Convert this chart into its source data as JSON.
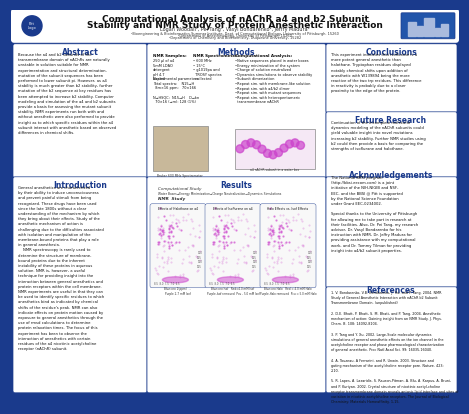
{
  "title_line1": "Computational Analysis of nAChR a4 and b2 Subunit",
  "title_line2": "Stability and NMR Study of Protein Anesthetic Interaction",
  "authors": "Logan Woodall¹, Pei Tang¹, Vasyl Bondarenko², Jeffry Madura³",
  "affil1": "¹Bioengineering & Bioinformatics Summer Institute, Dept. of Computational Biology, University of Pittsburgh, 15260",
  "affil2": "²Department of Anesthesiology, University of Pittsburgh, 15260",
  "affil3": "³Department of Chemistry and Biochemistry, Duquesne University, 15282",
  "bg_color": "#1a3a8c",
  "header_bg": "#1a3a8c",
  "panel_bg": "#ffffff",
  "panel_bg2": "#e8f0f8",
  "section_title_color": "#1a3a8c",
  "abstract_title": "Abstract",
  "abstract_text": "Because the a4 and b2 subunits of the\ntransmembrane domain of nAChRs are naturally\nunstable in solution suitable for NMR\nexperimentation and structural determination,\nmutation of the subunit sequences has been\nperformed to lower subunit pi. However, as a4\nstability is much greater than b2 stability, further\nmutation of the b2 sequence at key residues has\nbeen attempted to increase b2 stability. Computer\nmodeling and simulation of the a4 and b2 subunits\nprovide a basis for assessing the mutant subunit\nstability. NMR experiments run both with and\nwithout anesthetic were also performed to provide\ninsight as to which specific residues within the a4\nsubunit interact with anesthetic based on observed\ndifferences in chemical shifts.",
  "intro_title": "Introduction",
  "intro_text": "General anesthetics are characterized\nby their ability to induce unconsciousness\nand prevent painful stimuli from being\nrecognized. These drugs have been used\nsince the late 1800s without a clear\nunderstanding of the mechanism by which\nthey bring about their effects. Study of the\nanesthetic mechanism of action is\nchallenging due to the difficulties associated\nwith isolation and manipulation of the\nmembrane-bound proteins that play a role\nin general anesthesia.\n    NMR spectroscopy is rarely used to\ndetermine the structure of membrane-\nbound proteins due to the inherent\ninstability of these proteins in aqueous\nsolution. NMR is, however, a useful\ntechnique for providing insight into the\ninteraction between general anesthetics and\nprotein receptors within the cell membrane.\nNMR experiments are useful in that they can\nbe used to identify specific residues to which\nanesthetics bind as indicated by chemical\nshifts of the residue's peak. NMR can also\nindicate effects on protein motion caused by\nexposure to general anesthetics through the\nuse of rmsd calculations to determine\nprotein relaxation times. The focus of this\nexperiment has been to observe the\ninteraction of anesthetics with certain\nresidues of the a4 nicotinic acetylcholine\nreceptor (nAChR) subunit.",
  "methods_title": "Methods",
  "conclusions_title": "Conclusions",
  "conclusions_text": "This experiment indicates that isoflurane is a\nmore potent general anesthetic than\nhalothane. Tryptophan residues displayed\nnotably chemical shifts upon addition of\nanesthetic with W139894 being the more\nreactive of the two trp residues. This difference\nin reactivity is probably due to a closer\nproximity to the edge of the protein.",
  "future_title": "Future Research",
  "future_text": "Continuation of the incomplete molecular\ndynamics modeling of the nAChR subunits could\nyield valuable insight into novel mutations\nincreasing b2 stability. Further NMR studies using\nb2 could then provide a basis for comparing the\nstrengths of isoflurane and halothane.",
  "ack_title": "Acknowledgements",
  "ack_text": "The National BBSI program\n(http://bbsi.eecom.com) is a joint\ninitiative of the NIH-NIGIB and NSF-\nEEC, and the BBSI @ Pitt is supported\nby the National Science Foundation\nunder Grant EEC-0234002.\n\nSpecial thanks to the University of Pittsburgh\nfor allowing me to take part in research at\ntheir facilities. Also, Dr. Pei Tang, my research\nadvisor, Dr. Vasyl Bondarenko for his\ninstruction with NMR, Dr. Jeffry Madura for\nproviding assistance with my computational\nwork, and Dr. Tommy Tilman for providing\ninsight into a4/b2 subunit properties.",
  "refs_title": "References",
  "refs_text": "1. V. Bondarenko, V.B. Bondarenko, J. Hu, and P. Tang. 2004. NMR\nStudy of General Anesthetic Interaction with nAChR b2 Subunit\nTransmembrane Domain. (unpublished)\n\n2. D.E. Bhatt, P. Bhatt, S. M. Bhatt, and P. Tang. 2004. Anesthetic\nmechanism of action: Gaining insight from an NMR Study. J. Phys.\nChem. B. 108: 14092-8104.\n\n3. P. Tang and Y. Xu. 2002. Large-Scale molecular dynamics\nsimulations of general anesthetic effects on the ion channel in the\nacetylcholine receptor and phase pharmacological characterization\nof general anesthetic. Proc Natl Acad Sci. 99: 16035-16040.\n\n4. A. Touzeau, A Ferrarini, and R. Unwin. 2003. Structure and\ngating mechanism of the acetylcholine receptor pore. Nature. 423:\n2-10.\n\n5. R. Lapes, A. Lazaridis, S. Rauson-Pitman, A. Blu, A. Karpus, A. Bruni,\nand P. Kuriyan. 2002. Crystal structure of nicotinic acetyl-choline\nreceptor transmembrane domain reveals anionic lipid interface and sites of\nvariation in nicotinic acetylcholine receptors. The Journal of Biological\nChemistry: Materials Homeaffinity. 1-15.",
  "results_title": "Results"
}
